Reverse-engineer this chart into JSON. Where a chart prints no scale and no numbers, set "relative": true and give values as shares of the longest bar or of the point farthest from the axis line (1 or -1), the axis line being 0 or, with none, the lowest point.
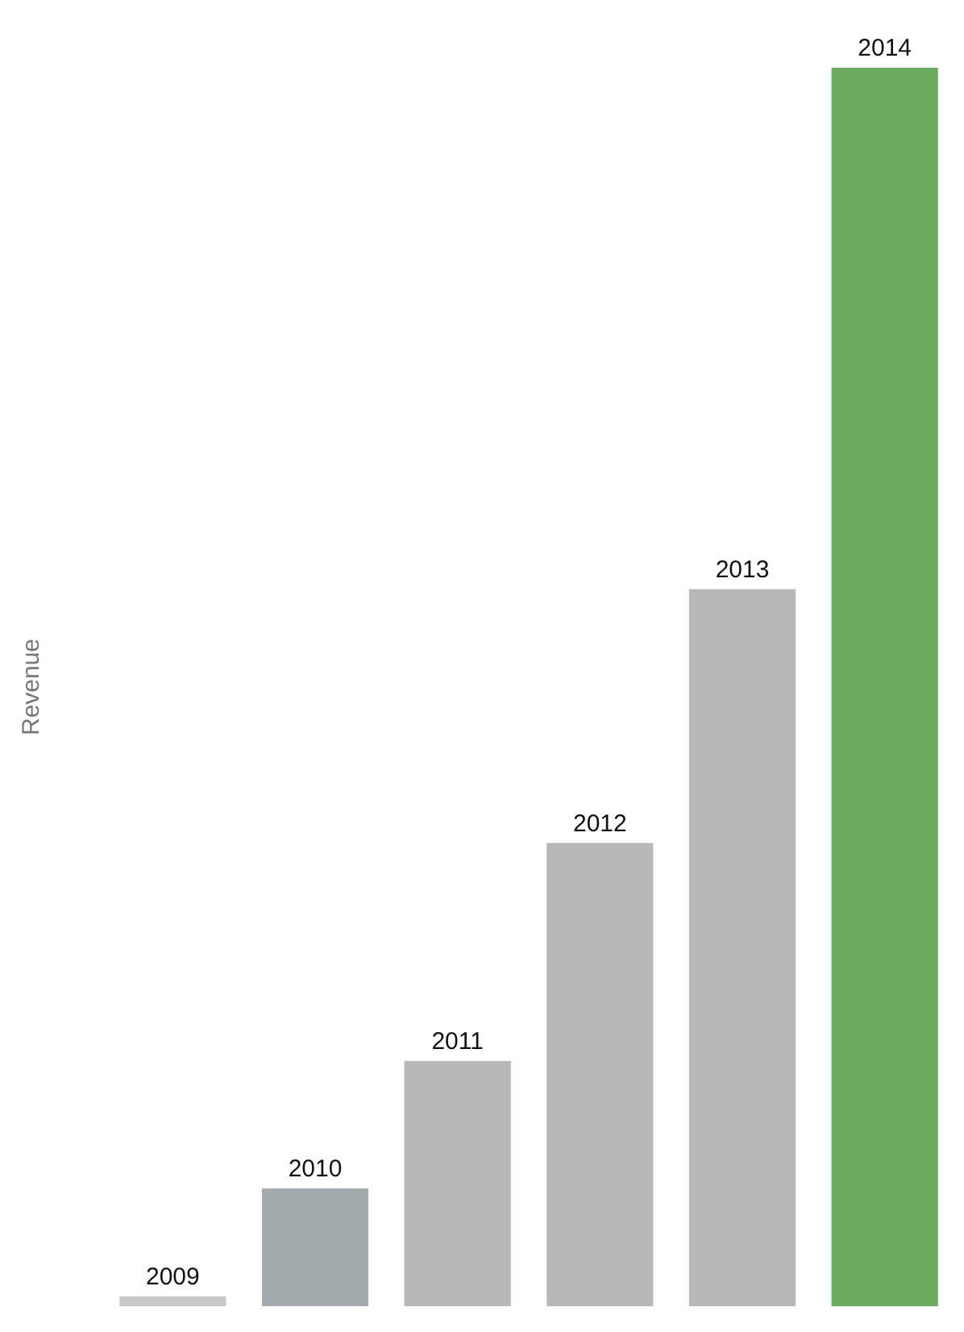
{
  "chart_data": {
    "type": "bar",
    "ylabel": "Revenue",
    "relative": true,
    "categories": [
      "2009",
      "2010",
      "2011",
      "2012",
      "2013",
      "2014"
    ],
    "values": [
      0.008,
      0.095,
      0.198,
      0.374,
      0.579,
      1
    ],
    "colors": [
      "#c8c8c8",
      "#a4abad",
      "#b8b8b8",
      "#b8b8b8",
      "#b8b8b8",
      "#6aab5f"
    ]
  }
}
